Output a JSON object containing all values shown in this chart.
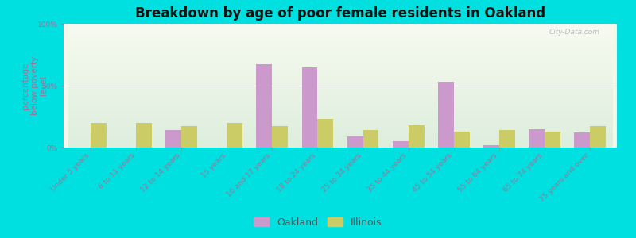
{
  "title": "Breakdown by age of poor female residents in Oakland",
  "categories": [
    "Under 5 years",
    "6 to 11 years",
    "12 to 14 years",
    "15 years",
    "16 and 17 years",
    "18 to 24 years",
    "25 to 34 years",
    "35 to 44 years",
    "45 to 54 years",
    "55 to 64 years",
    "65 to 74 years",
    "75 years and over"
  ],
  "oakland_values": [
    0,
    0,
    14,
    0,
    67,
    65,
    9,
    5,
    53,
    2,
    15,
    12
  ],
  "illinois_values": [
    20,
    20,
    17,
    20,
    17,
    23,
    14,
    18,
    13,
    14,
    13,
    17
  ],
  "oakland_color": "#cc99cc",
  "illinois_color": "#cccc66",
  "background_outer": "#00e0e0",
  "ylabel": "percentage\nbelow poverty\nlevel",
  "ylim": [
    0,
    100
  ],
  "yticks": [
    0,
    50,
    100
  ],
  "ytick_labels": [
    "0%",
    "50%",
    "100%"
  ],
  "bar_width": 0.35,
  "title_fontsize": 12,
  "axis_label_fontsize": 7.5,
  "tick_fontsize": 6.5,
  "legend_labels": [
    "Oakland",
    "Illinois"
  ],
  "legend_fontsize": 9
}
